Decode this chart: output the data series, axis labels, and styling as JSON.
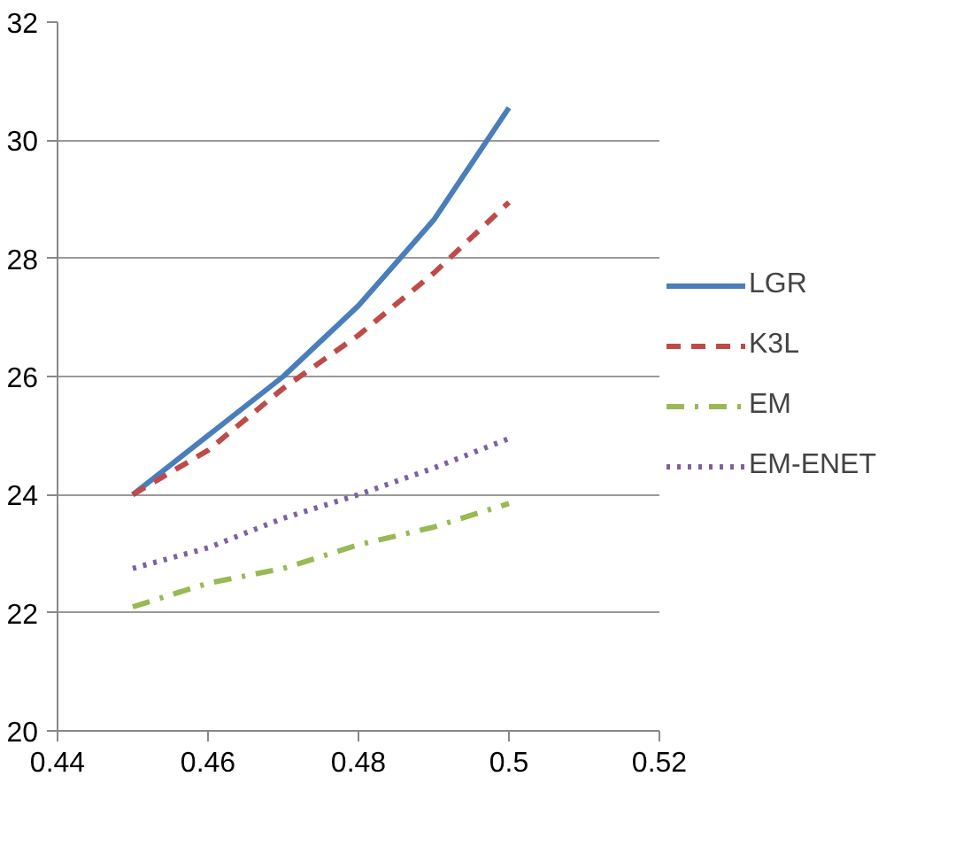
{
  "chart_data": {
    "type": "line",
    "x": [
      0.45,
      0.46,
      0.47,
      0.48,
      0.49,
      0.5
    ],
    "series": [
      {
        "name": "LGR",
        "color": "#4a7ebb",
        "line_style": "solid",
        "values": [
          24.0,
          25.0,
          26.0,
          27.2,
          28.65,
          30.55
        ]
      },
      {
        "name": "K3L",
        "color": "#be4b48",
        "line_style": "dashed",
        "values": [
          24.0,
          24.75,
          25.8,
          26.7,
          27.75,
          28.95
        ]
      },
      {
        "name": "EM",
        "color": "#98b954",
        "line_style": "dashdot",
        "values": [
          22.1,
          22.5,
          22.75,
          23.15,
          23.45,
          23.85
        ]
      },
      {
        "name": "EM-ENET",
        "color": "#7d60a0",
        "line_style": "dotted",
        "values": [
          22.75,
          23.1,
          23.6,
          24.0,
          24.45,
          24.95
        ]
      }
    ],
    "xlim": [
      0.44,
      0.52
    ],
    "xticks": [
      0.44,
      0.46,
      0.48,
      {
        "value": 0.5,
        "label": "0.5"
      },
      0.52
    ],
    "ylim": [
      20,
      32
    ],
    "yticks": [
      20,
      22,
      24,
      26,
      28,
      30,
      32
    ],
    "grid": "y",
    "legend": "right",
    "marker": "none"
  }
}
